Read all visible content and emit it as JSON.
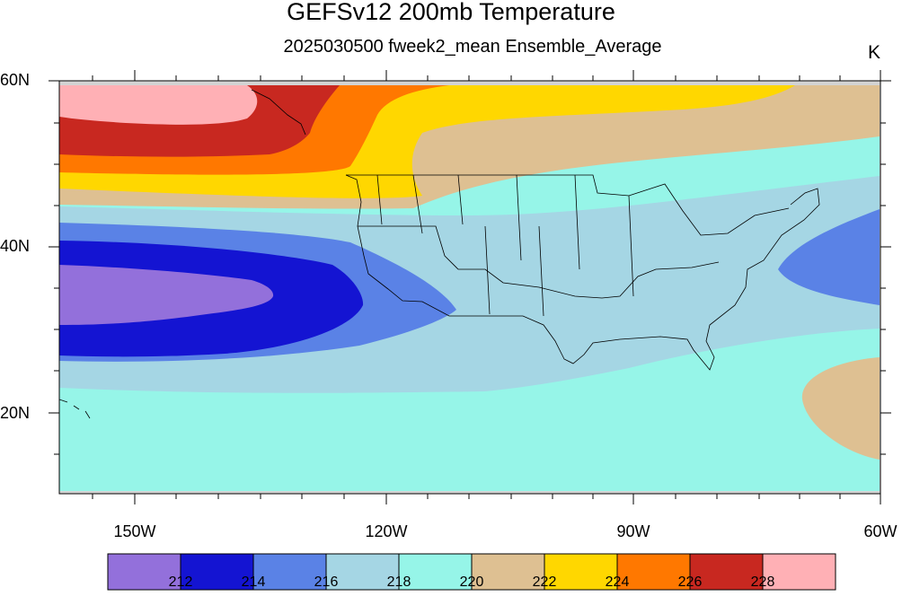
{
  "title": "GEFSv12 200mb Temperature",
  "subtitle": "2025030500 fweek2_mean Ensemble_Average",
  "units": "K",
  "lat_labels": [
    "60N",
    "40N",
    "20N"
  ],
  "lon_labels": [
    "150W",
    "120W",
    "90W",
    "60W"
  ],
  "colorbar": {
    "labels": [
      "212",
      "214",
      "216",
      "218",
      "220",
      "222",
      "224",
      "226",
      "228"
    ],
    "colors": [
      "#9370db",
      "#1414d2",
      "#5a82e6",
      "#a5d6e4",
      "#96f5e8",
      "#dec092",
      "#ffd700",
      "#ff7800",
      "#c82820",
      "#ffb0b5"
    ]
  },
  "map": {
    "lon_range": [
      "160W",
      "60W"
    ],
    "lat_range": [
      "10N",
      "60N"
    ],
    "projection": "cylindrical equidistant"
  },
  "colors": {
    "land_mask": "#d3d3d3",
    "border": "#000000"
  }
}
